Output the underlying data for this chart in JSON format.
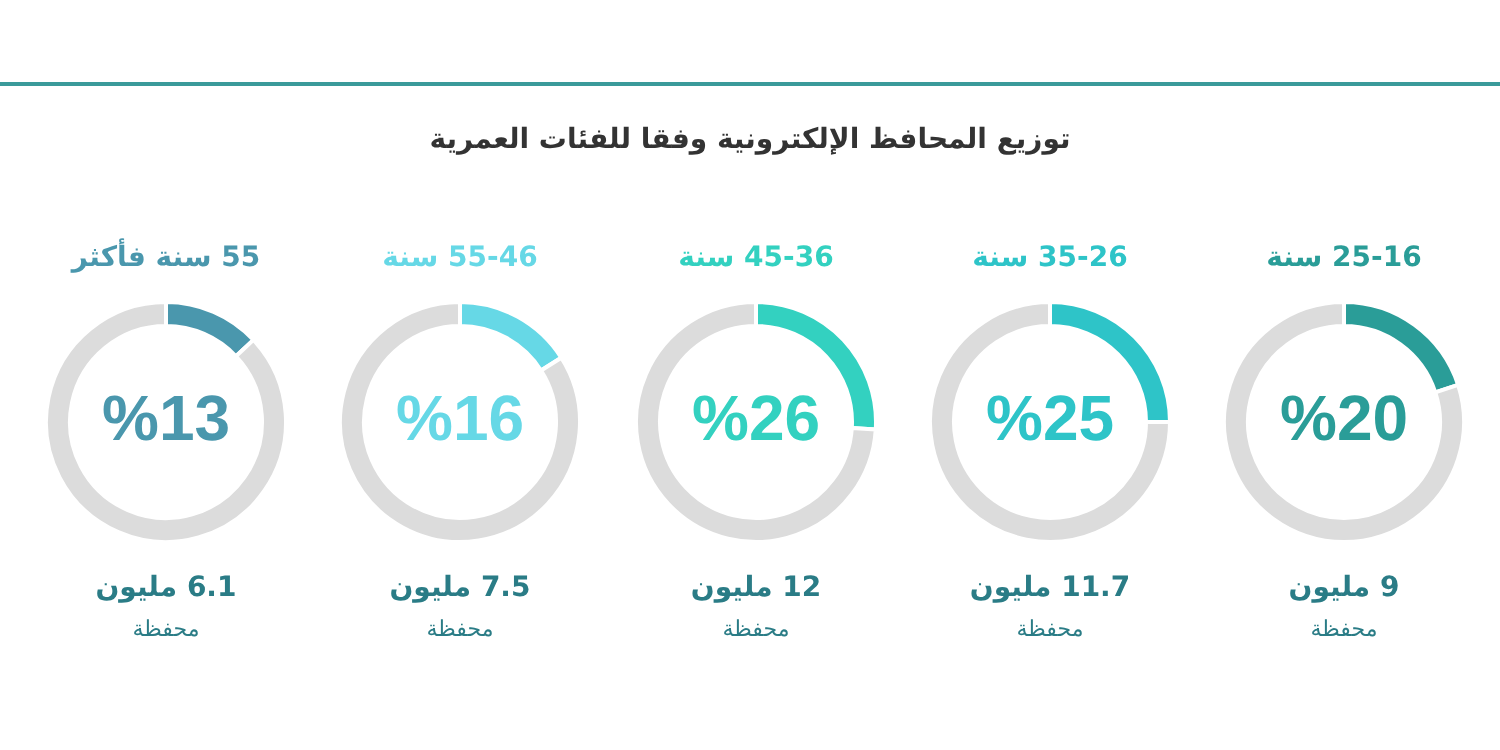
{
  "chart_data": [
    {
      "type": "other",
      "title": "توزيع المحافظ الإلكترونية وفقا للفئات العمرية"
    },
    {
      "type": "donut",
      "title": "25-16 سنة",
      "categories": [
        null,
        null
      ],
      "values": [
        20,
        80
      ],
      "colors": [
        "#2a9d98",
        "#dcdcdc"
      ],
      "value_labels": [
        "%20",
        null
      ],
      "annotations": [
        "9 مليون",
        "محفظة"
      ]
    },
    {
      "type": "donut",
      "title": "35-26 سنة",
      "categories": [
        null,
        null
      ],
      "values": [
        25,
        75
      ],
      "colors": [
        "#2ec4c8",
        "#dcdcdc"
      ],
      "value_labels": [
        "%25",
        null
      ],
      "annotations": [
        "11.7 مليون",
        "محفظة"
      ]
    },
    {
      "type": "donut",
      "title": "45-36 سنة",
      "categories": [
        null,
        null
      ],
      "values": [
        26,
        74
      ],
      "colors": [
        "#33d1c0",
        "#dcdcdc"
      ],
      "value_labels": [
        "%26",
        null
      ],
      "annotations": [
        "12 مليون",
        "محفظة"
      ]
    },
    {
      "type": "donut",
      "title": "55-46 سنة",
      "categories": [
        null,
        null
      ],
      "values": [
        16,
        84
      ],
      "colors": [
        "#66d8e6",
        "#dcdcdc"
      ],
      "value_labels": [
        "%16",
        null
      ],
      "annotations": [
        "7.5 مليون",
        "محفظة"
      ]
    },
    {
      "type": "donut",
      "title": "55 سنة فأكثر",
      "categories": [
        null,
        null
      ],
      "values": [
        13,
        87
      ],
      "colors": [
        "#4a97ad",
        "#dcdcdc"
      ],
      "value_labels": [
        "%13",
        null
      ],
      "annotations": [
        "6.1 مليون",
        "محفظة"
      ]
    }
  ]
}
